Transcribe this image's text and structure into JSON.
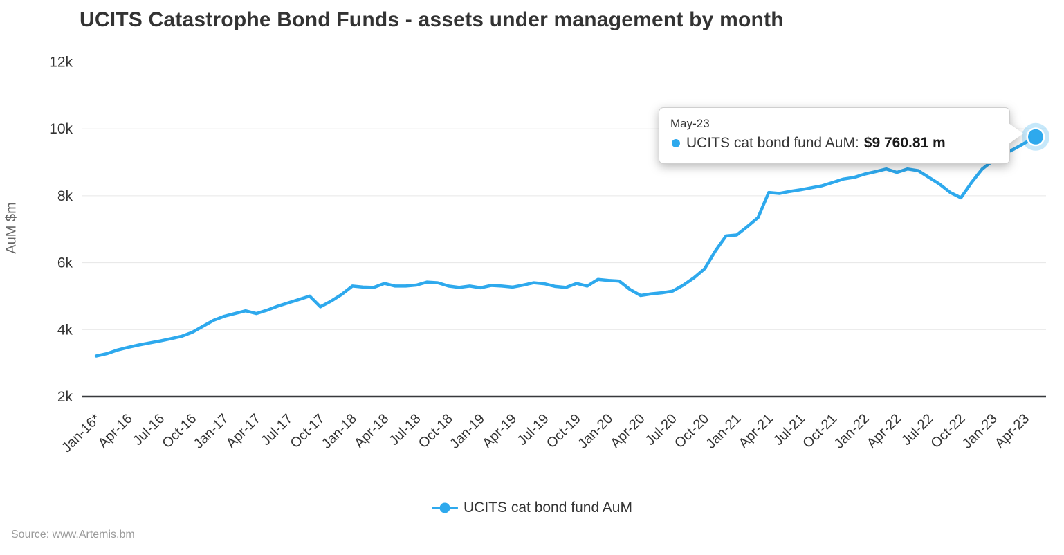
{
  "title": "UCITS Catastrophe Bond Funds - assets under management by month",
  "source": "Source: www.Artemis.bm",
  "legend": {
    "label": "UCITS cat bond fund AuM"
  },
  "tooltip": {
    "date": "May-23",
    "series_label": "UCITS cat bond fund AuM:",
    "value": "$9 760.81 m"
  },
  "colors": {
    "line": "#2ea9ed",
    "halo": "rgba(46,169,237,0.27)",
    "grid": "#e6e6e6",
    "axis_line": "#37393c",
    "axis_text": "#333333",
    "title_text": "#333333",
    "y_title_text": "#666666",
    "source_text": "#9b9b9b",
    "tooltip_bg": "#ffffff"
  },
  "chart_data": {
    "type": "line",
    "title": "UCITS Catastrophe Bond Funds - assets under management by month",
    "xlabel": "",
    "ylabel": "AuM $m",
    "ylim": [
      2000,
      12000
    ],
    "grid": "horizontal-only",
    "legend_position": "bottom-center",
    "y_ticks": [
      {
        "label": "2k",
        "value": 2000
      },
      {
        "label": "4k",
        "value": 4000
      },
      {
        "label": "6k",
        "value": 6000
      },
      {
        "label": "8k",
        "value": 8000
      },
      {
        "label": "10k",
        "value": 10000
      },
      {
        "label": "12k",
        "value": 12000
      }
    ],
    "x_tick_labels": [
      "Jan-16*",
      "Apr-16",
      "Jul-16",
      "Oct-16",
      "Jan-17",
      "Apr-17",
      "Jul-17",
      "Oct-17",
      "Jan-18",
      "Apr-18",
      "Jul-18",
      "Oct-18",
      "Jan-19",
      "Apr-19",
      "Jul-19",
      "Oct-19",
      "Jan-20",
      "Apr-20",
      "Jul-20",
      "Oct-20",
      "Jan-21",
      "Apr-21",
      "Jul-21",
      "Oct-21",
      "Jan-22",
      "Apr-22",
      "Jul-22",
      "Oct-22",
      "Jan-23",
      "Apr-23"
    ],
    "x_tick_every": 3,
    "categories": [
      "Jan-16",
      "Feb-16",
      "Mar-16",
      "Apr-16",
      "May-16",
      "Jun-16",
      "Jul-16",
      "Aug-16",
      "Sep-16",
      "Oct-16",
      "Nov-16",
      "Dec-16",
      "Jan-17",
      "Feb-17",
      "Mar-17",
      "Apr-17",
      "May-17",
      "Jun-17",
      "Jul-17",
      "Aug-17",
      "Sep-17",
      "Oct-17",
      "Nov-17",
      "Dec-17",
      "Jan-18",
      "Feb-18",
      "Mar-18",
      "Apr-18",
      "May-18",
      "Jun-18",
      "Jul-18",
      "Aug-18",
      "Sep-18",
      "Oct-18",
      "Nov-18",
      "Dec-18",
      "Jan-19",
      "Feb-19",
      "Mar-19",
      "Apr-19",
      "May-19",
      "Jun-19",
      "Jul-19",
      "Aug-19",
      "Sep-19",
      "Oct-19",
      "Nov-19",
      "Dec-19",
      "Jan-20",
      "Feb-20",
      "Mar-20",
      "Apr-20",
      "May-20",
      "Jun-20",
      "Jul-20",
      "Aug-20",
      "Sep-20",
      "Oct-20",
      "Nov-20",
      "Dec-20",
      "Jan-21",
      "Feb-21",
      "Mar-21",
      "Apr-21",
      "May-21",
      "Jun-21",
      "Jul-21",
      "Aug-21",
      "Sep-21",
      "Oct-21",
      "Nov-21",
      "Dec-21",
      "Jan-22",
      "Feb-22",
      "Mar-22",
      "Apr-22",
      "May-22",
      "Jun-22",
      "Jul-22",
      "Aug-22",
      "Sep-22",
      "Oct-22",
      "Nov-22",
      "Dec-22",
      "Jan-23",
      "Feb-23",
      "Mar-23",
      "Apr-23",
      "May-23"
    ],
    "series": [
      {
        "name": "UCITS cat bond fund AuM",
        "values": [
          3210,
          3280,
          3390,
          3470,
          3540,
          3600,
          3660,
          3730,
          3800,
          3920,
          4100,
          4280,
          4400,
          4480,
          4560,
          4480,
          4580,
          4700,
          4800,
          4900,
          5000,
          4680,
          4850,
          5050,
          5300,
          5270,
          5260,
          5380,
          5300,
          5300,
          5330,
          5420,
          5400,
          5300,
          5260,
          5300,
          5250,
          5320,
          5300,
          5270,
          5330,
          5400,
          5370,
          5290,
          5260,
          5380,
          5300,
          5500,
          5470,
          5450,
          5200,
          5020,
          5070,
          5100,
          5150,
          5330,
          5550,
          5820,
          6350,
          6800,
          6830,
          7080,
          7350,
          8100,
          8070,
          8130,
          8180,
          8240,
          8300,
          8400,
          8500,
          8550,
          8650,
          8720,
          8800,
          8700,
          8800,
          8750,
          8550,
          8350,
          8100,
          7940,
          8400,
          8800,
          9050,
          9250,
          9400,
          9580,
          9760.81
        ]
      }
    ],
    "highlighted_point": {
      "category": "May-23",
      "value": 9760.81,
      "value_text": "$9 760.81 m"
    }
  }
}
